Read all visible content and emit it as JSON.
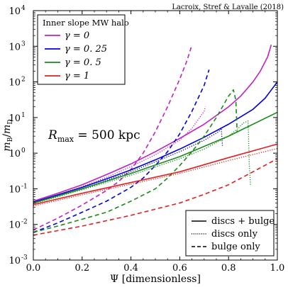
{
  "chart_data": {
    "type": "line",
    "credit": "Lacroix, Stref & Lavalle (2018)",
    "xlabel": "Ψ [dimensionless]",
    "ylabel_main": "m",
    "ylabel_sub_num": "B",
    "ylabel_sub_den": "D",
    "xlim": [
      0.0,
      1.0
    ],
    "ylim": [
      0.001,
      10000
    ],
    "yscale": "log",
    "xticks": [
      "0.0",
      "0.2",
      "0.4",
      "0.6",
      "0.8",
      "1.0"
    ],
    "yticks": [
      {
        "base": "10",
        "exp": "-3"
      },
      {
        "base": "10",
        "exp": "-2"
      },
      {
        "base": "10",
        "exp": "-1"
      },
      {
        "base": "10",
        "exp": "0"
      },
      {
        "base": "10",
        "exp": "1"
      },
      {
        "base": "10",
        "exp": "2"
      },
      {
        "base": "10",
        "exp": "3"
      },
      {
        "base": "10",
        "exp": "4"
      }
    ],
    "annotation": {
      "text": "R",
      "sub": "max",
      "rest": " = 500 kpc"
    },
    "legend_colors": {
      "title": "Inner slope MW halo",
      "location": "upper-left",
      "entries": [
        {
          "label": "γ = 0",
          "color": "#c020c0"
        },
        {
          "label": "γ = 0. 25",
          "color": "#0000e0"
        },
        {
          "label": "γ = 0. 5",
          "color": "#1a8a1a"
        },
        {
          "label": "γ = 1",
          "color": "#e02020"
        }
      ]
    },
    "legend_styles": {
      "location": "lower-right",
      "entries": [
        {
          "label": "discs + bulge",
          "style": "solid"
        },
        {
          "label": "discs only",
          "style": "dotted"
        },
        {
          "label": "bulge only",
          "style": "dashed"
        }
      ]
    },
    "series": [
      {
        "gamma": "0",
        "component": "discs + bulge",
        "style": "solid",
        "color": "#c020c0",
        "x": [
          0.0,
          0.1,
          0.2,
          0.3,
          0.4,
          0.5,
          0.6,
          0.7,
          0.8,
          0.85,
          0.9,
          0.93,
          0.96,
          0.975
        ],
        "y": [
          0.045,
          0.075,
          0.13,
          0.25,
          0.5,
          1.1,
          2.6,
          6.5,
          20,
          40,
          100,
          200,
          500,
          1100
        ]
      },
      {
        "gamma": "0",
        "component": "discs only",
        "style": "dotted",
        "color": "#c020c0",
        "x": [
          0.0,
          0.1,
          0.2,
          0.3,
          0.4,
          0.5,
          0.6,
          0.65,
          0.7,
          0.705
        ],
        "y": [
          0.042,
          0.068,
          0.115,
          0.21,
          0.42,
          0.9,
          2.3,
          5,
          15,
          20
        ]
      },
      {
        "gamma": "0",
        "component": "bulge only",
        "style": "dashed",
        "color": "#c020c0",
        "x": [
          0.0,
          0.1,
          0.2,
          0.3,
          0.35,
          0.4,
          0.45,
          0.5,
          0.55,
          0.6,
          0.63,
          0.65
        ],
        "y": [
          0.007,
          0.015,
          0.035,
          0.09,
          0.16,
          0.35,
          1,
          4,
          20,
          120,
          400,
          1100
        ]
      },
      {
        "gamma": "0.25",
        "component": "discs + bulge",
        "style": "solid",
        "color": "#0000e0",
        "x": [
          0.0,
          0.1,
          0.2,
          0.3,
          0.4,
          0.5,
          0.6,
          0.7,
          0.8,
          0.9,
          0.95,
          1.0
        ],
        "y": [
          0.042,
          0.068,
          0.11,
          0.19,
          0.34,
          0.65,
          1.3,
          2.8,
          6.5,
          17,
          35,
          100
        ]
      },
      {
        "gamma": "0.25",
        "component": "discs only",
        "style": "dotted",
        "color": "#0000e0",
        "x": [
          0.0,
          0.2,
          0.4,
          0.6,
          0.7,
          0.76,
          0.77,
          0.775
        ],
        "y": [
          0.04,
          0.1,
          0.3,
          1.1,
          2.3,
          4,
          5,
          1.6
        ]
      },
      {
        "gamma": "0.25",
        "component": "bulge only",
        "style": "dashed",
        "color": "#0000e0",
        "x": [
          0.0,
          0.1,
          0.2,
          0.3,
          0.4,
          0.45,
          0.5,
          0.55,
          0.6,
          0.65,
          0.7,
          0.72
        ],
        "y": [
          0.006,
          0.011,
          0.022,
          0.045,
          0.11,
          0.2,
          0.45,
          1.1,
          3.5,
          15,
          80,
          220
        ]
      },
      {
        "gamma": "0.5",
        "component": "discs + bulge",
        "style": "solid",
        "color": "#1a8a1a",
        "x": [
          0.0,
          0.2,
          0.4,
          0.6,
          0.8,
          1.0
        ],
        "y": [
          0.04,
          0.1,
          0.27,
          0.8,
          3,
          14
        ]
      },
      {
        "gamma": "0.5",
        "component": "discs only",
        "style": "dotted",
        "color": "#1a8a1a",
        "x": [
          0.0,
          0.2,
          0.4,
          0.6,
          0.7,
          0.8,
          0.84,
          0.86,
          0.88,
          0.885,
          0.89
        ],
        "y": [
          0.038,
          0.094,
          0.24,
          0.7,
          1.3,
          3,
          5,
          7,
          8,
          0.5,
          0.12
        ]
      },
      {
        "gamma": "0.5",
        "component": "bulge only",
        "style": "dashed",
        "color": "#1a8a1a",
        "x": [
          0.0,
          0.1,
          0.2,
          0.3,
          0.4,
          0.5,
          0.55,
          0.6,
          0.65,
          0.7,
          0.75,
          0.8,
          0.82,
          0.83,
          0.835
        ],
        "y": [
          0.006,
          0.009,
          0.014,
          0.022,
          0.045,
          0.1,
          0.2,
          0.45,
          1.1,
          3,
          10,
          40,
          60,
          30,
          4
        ]
      },
      {
        "gamma": "1",
        "component": "discs + bulge",
        "style": "solid",
        "color": "#e02020",
        "x": [
          0.0,
          0.2,
          0.4,
          0.6,
          0.8,
          1.0
        ],
        "y": [
          0.036,
          0.075,
          0.15,
          0.3,
          0.75,
          1.8
        ]
      },
      {
        "gamma": "1",
        "component": "discs only",
        "style": "dotted",
        "color": "#e02020",
        "x": [
          0.0,
          0.2,
          0.4,
          0.6,
          0.8,
          1.0
        ],
        "y": [
          0.033,
          0.068,
          0.135,
          0.27,
          0.62,
          1.35
        ]
      },
      {
        "gamma": "1",
        "component": "bulge only",
        "style": "dashed",
        "color": "#e02020",
        "x": [
          0.0,
          0.2,
          0.4,
          0.6,
          0.7,
          0.8,
          0.9,
          1.0
        ],
        "y": [
          0.005,
          0.009,
          0.018,
          0.04,
          0.07,
          0.13,
          0.3,
          0.7
        ]
      }
    ]
  }
}
